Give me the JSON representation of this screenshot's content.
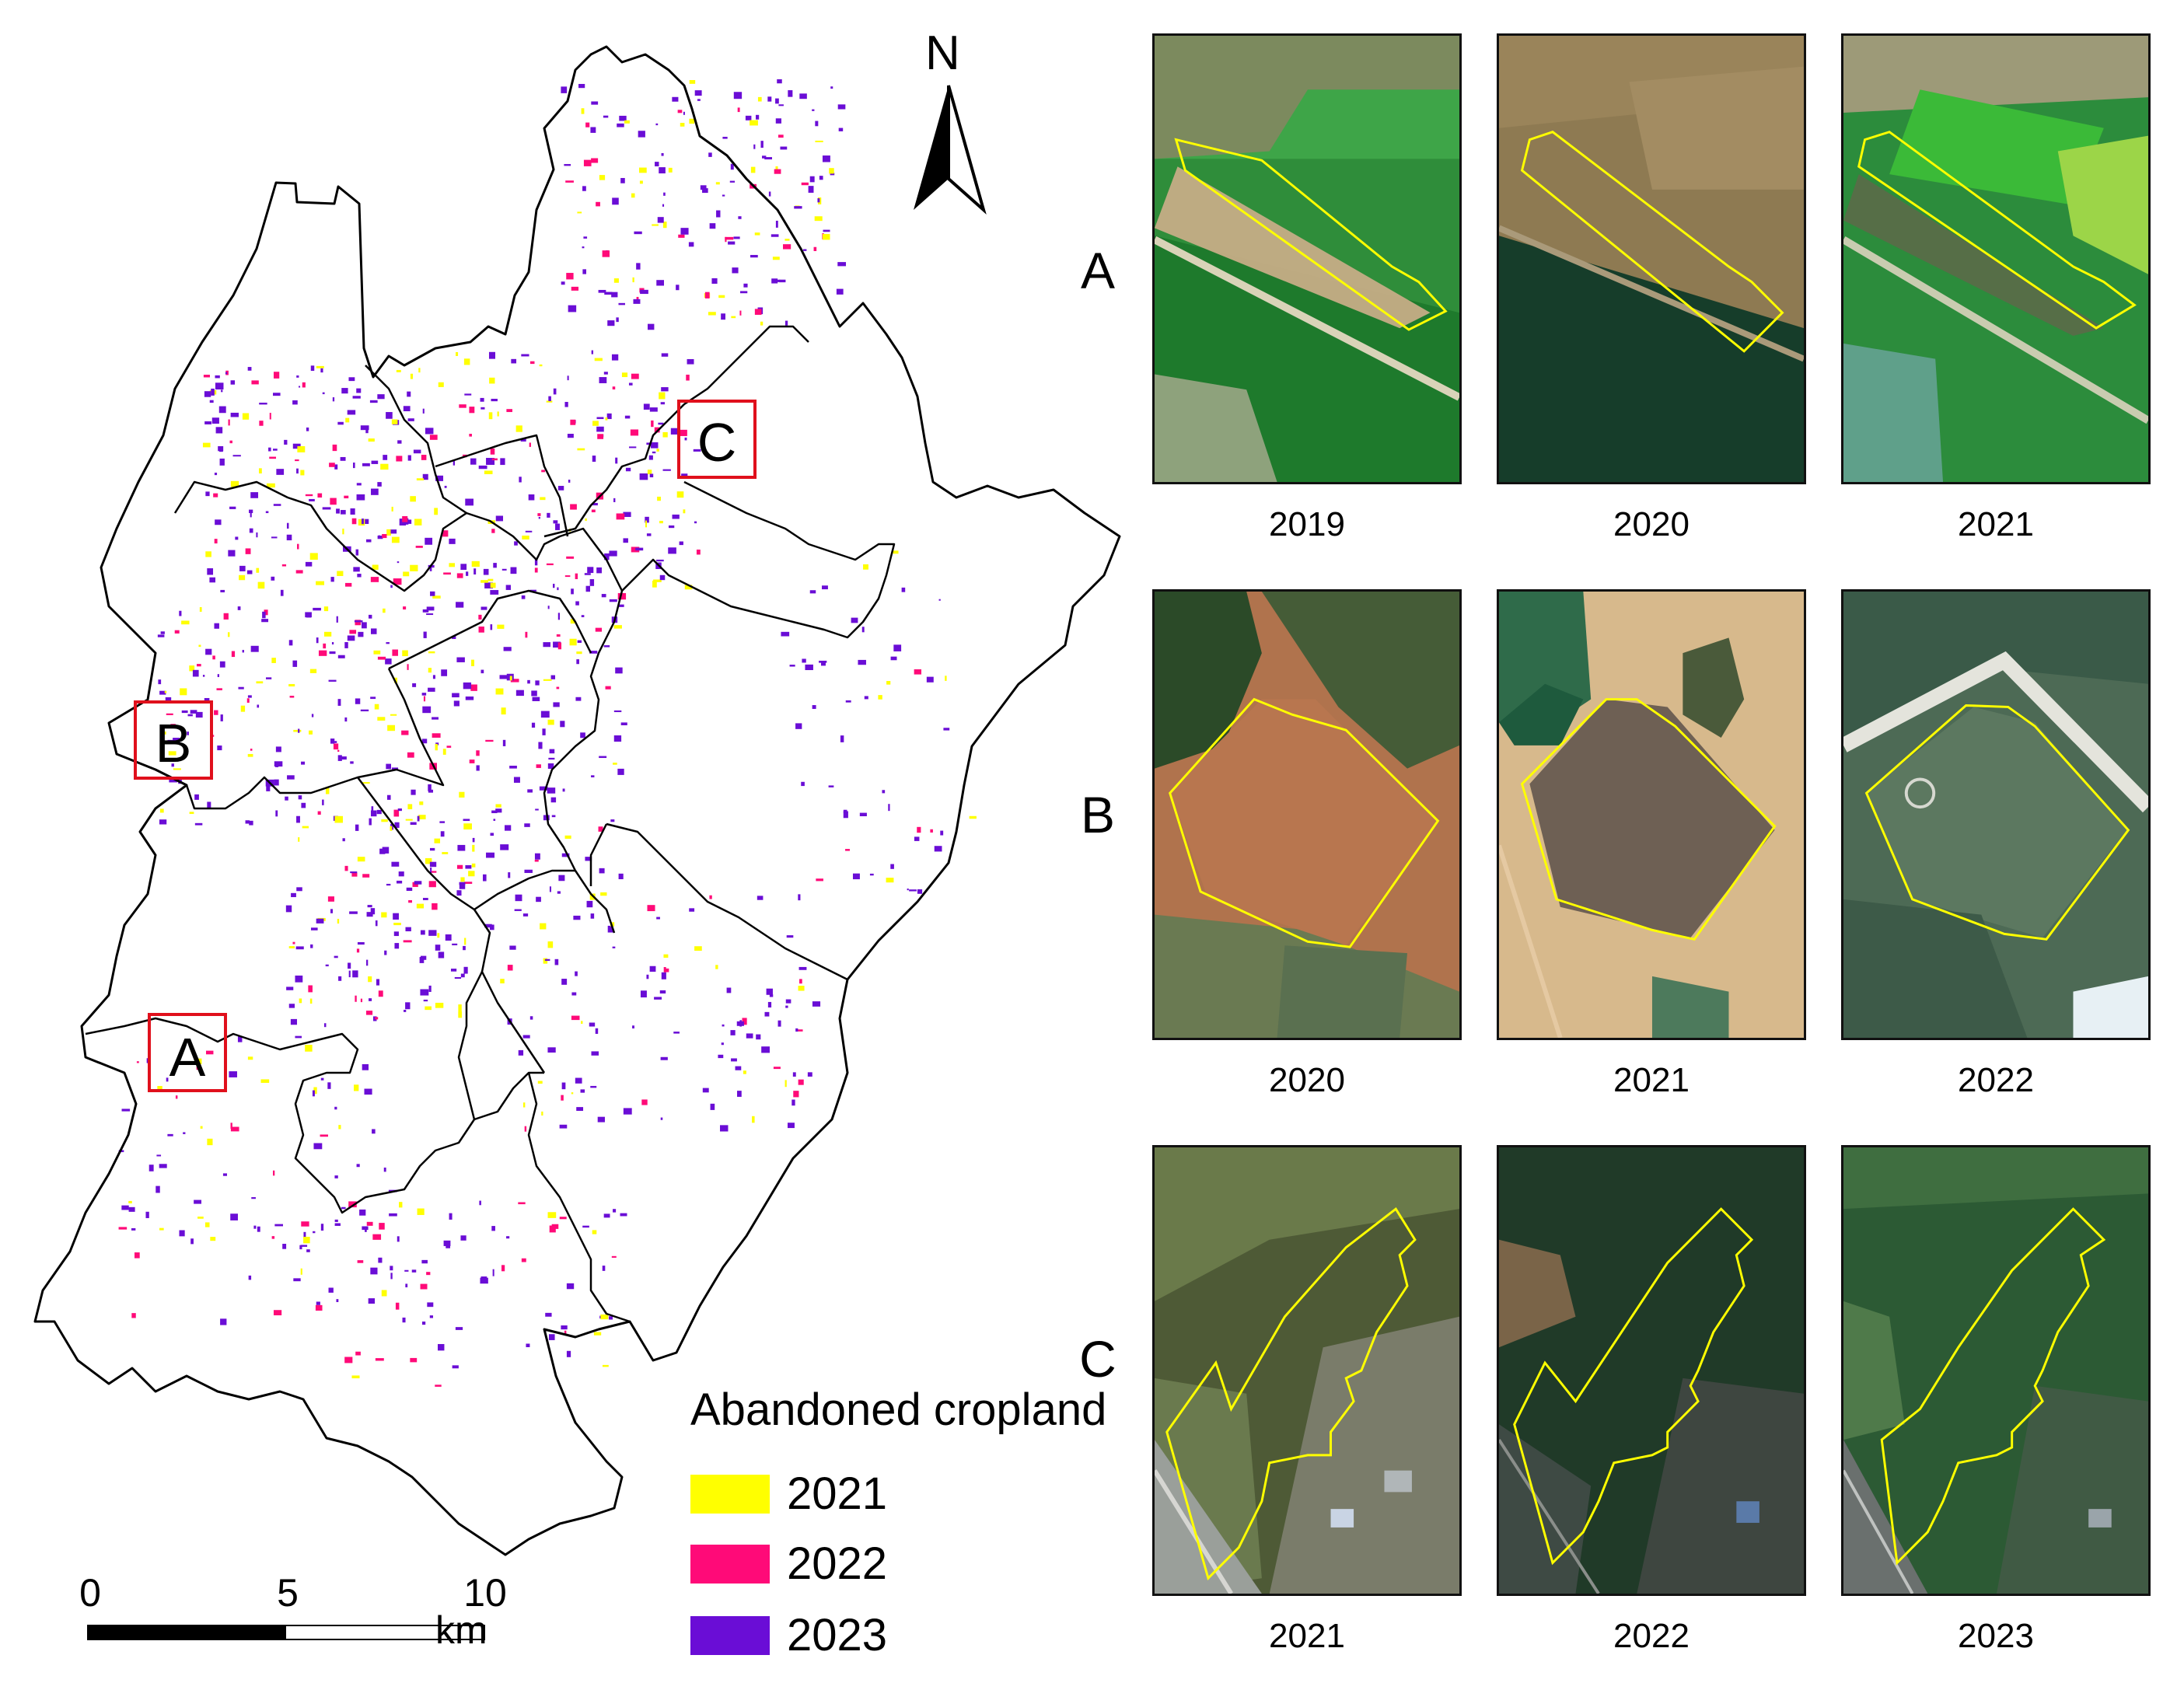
{
  "north_arrow": {
    "label": "N"
  },
  "study_sites": [
    "A",
    "B",
    "C"
  ],
  "legend": {
    "title": "Abandoned cropland",
    "items": [
      {
        "label": "2021",
        "color": "#ffff00"
      },
      {
        "label": "2022",
        "color": "#ff0a78"
      },
      {
        "label": "2023",
        "color": "#6a0dd6"
      }
    ]
  },
  "scale_bar": {
    "ticks": [
      "0",
      "5",
      "10"
    ],
    "unit": "km"
  },
  "panels": [
    {
      "row": "A",
      "years": [
        "2019",
        "2020",
        "2021"
      ]
    },
    {
      "row": "B",
      "years": [
        "2020",
        "2021",
        "2022"
      ]
    },
    {
      "row": "C",
      "years": [
        "2021",
        "2022",
        "2023"
      ]
    }
  ],
  "colors": {
    "boundary": "#000000",
    "site_box": "#e0101c",
    "parcel_outline": "#ffff00"
  }
}
